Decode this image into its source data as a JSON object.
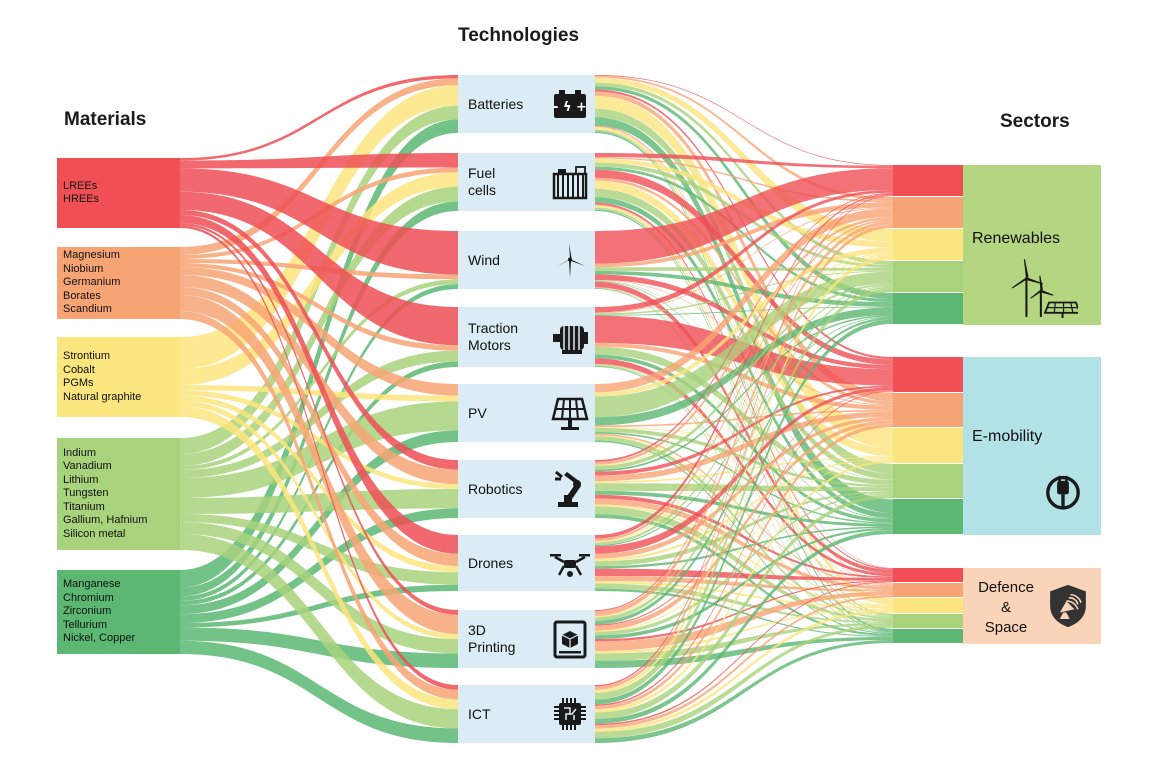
{
  "titles": {
    "materials": "Materials",
    "technologies": "Technologies",
    "sectors": "Sectors"
  },
  "colors": {
    "red": "#ef4f55",
    "orange": "#f7a474",
    "yellow": "#fbe57e",
    "lightgreen": "#a8d27b",
    "green": "#5bb772",
    "techbox": "#dcecf4",
    "renewables": "#b4d680",
    "emobility": "#b2e2e6",
    "defence": "#f9d4b8"
  },
  "materials": [
    {
      "group": "red",
      "items": [
        "LREEs",
        "HREEs"
      ]
    },
    {
      "group": "orange",
      "items": [
        "Magnesium",
        "Niobium",
        "Germanium",
        "Borates",
        "Scandium"
      ]
    },
    {
      "group": "yellow",
      "items": [
        "Strontium",
        "Cobalt",
        "PGMs",
        "Natural graphite"
      ]
    },
    {
      "group": "lightgreen",
      "items": [
        "Indium",
        "Vanadium",
        "Lithium",
        "Tungsten",
        "Titanium",
        "Gallium, Hafnium",
        "Silicon metal"
      ]
    },
    {
      "group": "green",
      "items": [
        "Manganese",
        "Chromium",
        "Zirconium",
        "Tellurium",
        "Nickel, Copper"
      ]
    }
  ],
  "technologies": [
    {
      "label": "Batteries",
      "icon": "battery-icon"
    },
    {
      "label": "Fuel\ncells",
      "icon": "fuel-cell-icon"
    },
    {
      "label": "Wind",
      "icon": "wind-turbine-icon"
    },
    {
      "label": "Traction\nMotors",
      "icon": "electric-motor-icon"
    },
    {
      "label": "PV",
      "icon": "solar-panel-icon"
    },
    {
      "label": "Robotics",
      "icon": "robot-arm-icon"
    },
    {
      "label": "Drones",
      "icon": "drone-icon"
    },
    {
      "label": "3D\nPrinting",
      "icon": "3d-printer-icon"
    },
    {
      "label": "ICT",
      "icon": "microchip-icon"
    }
  ],
  "sectors": [
    {
      "label": "Renewables",
      "icon": "wind-solar-icon"
    },
    {
      "label": "E-mobility",
      "icon": "plug-icon"
    },
    {
      "label": "Defence\n&\nSpace",
      "icon": "shield-satellite-icon"
    }
  ]
}
